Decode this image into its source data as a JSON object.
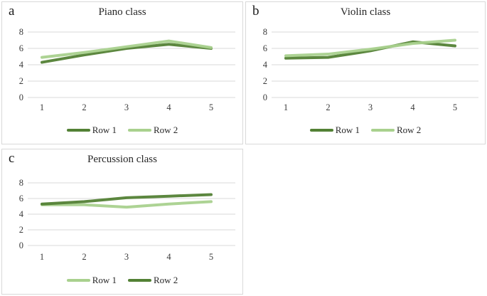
{
  "figure": {
    "description": "Three-panel line chart figure",
    "background": "#ffffff",
    "panel_border_color": "#d9d9d9"
  },
  "colors": {
    "dark_green": "#538135",
    "light_green": "#a9d18e",
    "gridline": "#d9d9d9",
    "text": "#3b3b3b"
  },
  "chart_data": [
    {
      "type": "line",
      "letter": "a",
      "title": "Piano class",
      "x": [
        1,
        2,
        3,
        4,
        5
      ],
      "xlabel": "",
      "ylabel": "",
      "ylim": [
        0,
        8
      ],
      "yticks": [
        0,
        2,
        4,
        6,
        8
      ],
      "grid": true,
      "legend_position": "bottom",
      "series": [
        {
          "name": "Row 1",
          "color": "#538135",
          "values": [
            4.3,
            5.2,
            6.0,
            6.5,
            6.0
          ]
        },
        {
          "name": "Row 2",
          "color": "#a9d18e",
          "values": [
            4.9,
            5.5,
            6.2,
            6.9,
            6.1
          ]
        }
      ]
    },
    {
      "type": "line",
      "letter": "b",
      "title": "Violin class",
      "x": [
        1,
        2,
        3,
        4,
        5
      ],
      "xlabel": "",
      "ylabel": "",
      "ylim": [
        0,
        8
      ],
      "yticks": [
        0,
        2,
        4,
        6,
        8
      ],
      "grid": true,
      "legend_position": "bottom",
      "series": [
        {
          "name": "Row 1",
          "color": "#538135",
          "values": [
            4.8,
            4.9,
            5.7,
            6.8,
            6.3
          ]
        },
        {
          "name": "Row 2",
          "color": "#a9d18e",
          "values": [
            5.1,
            5.3,
            5.9,
            6.6,
            7.0
          ]
        }
      ]
    },
    {
      "type": "line",
      "letter": "c",
      "title": "Percussion class",
      "x": [
        1,
        2,
        3,
        4,
        5
      ],
      "xlabel": "",
      "ylabel": "",
      "ylim": [
        0,
        8
      ],
      "yticks": [
        0,
        2,
        4,
        6,
        8
      ],
      "grid": true,
      "legend_position": "bottom",
      "series": [
        {
          "name": "Row 1",
          "color": "#a9d18e",
          "values": [
            5.2,
            5.2,
            4.9,
            5.3,
            5.6
          ]
        },
        {
          "name": "Row 2",
          "color": "#538135",
          "values": [
            5.3,
            5.6,
            6.1,
            6.3,
            6.5
          ]
        }
      ]
    }
  ]
}
